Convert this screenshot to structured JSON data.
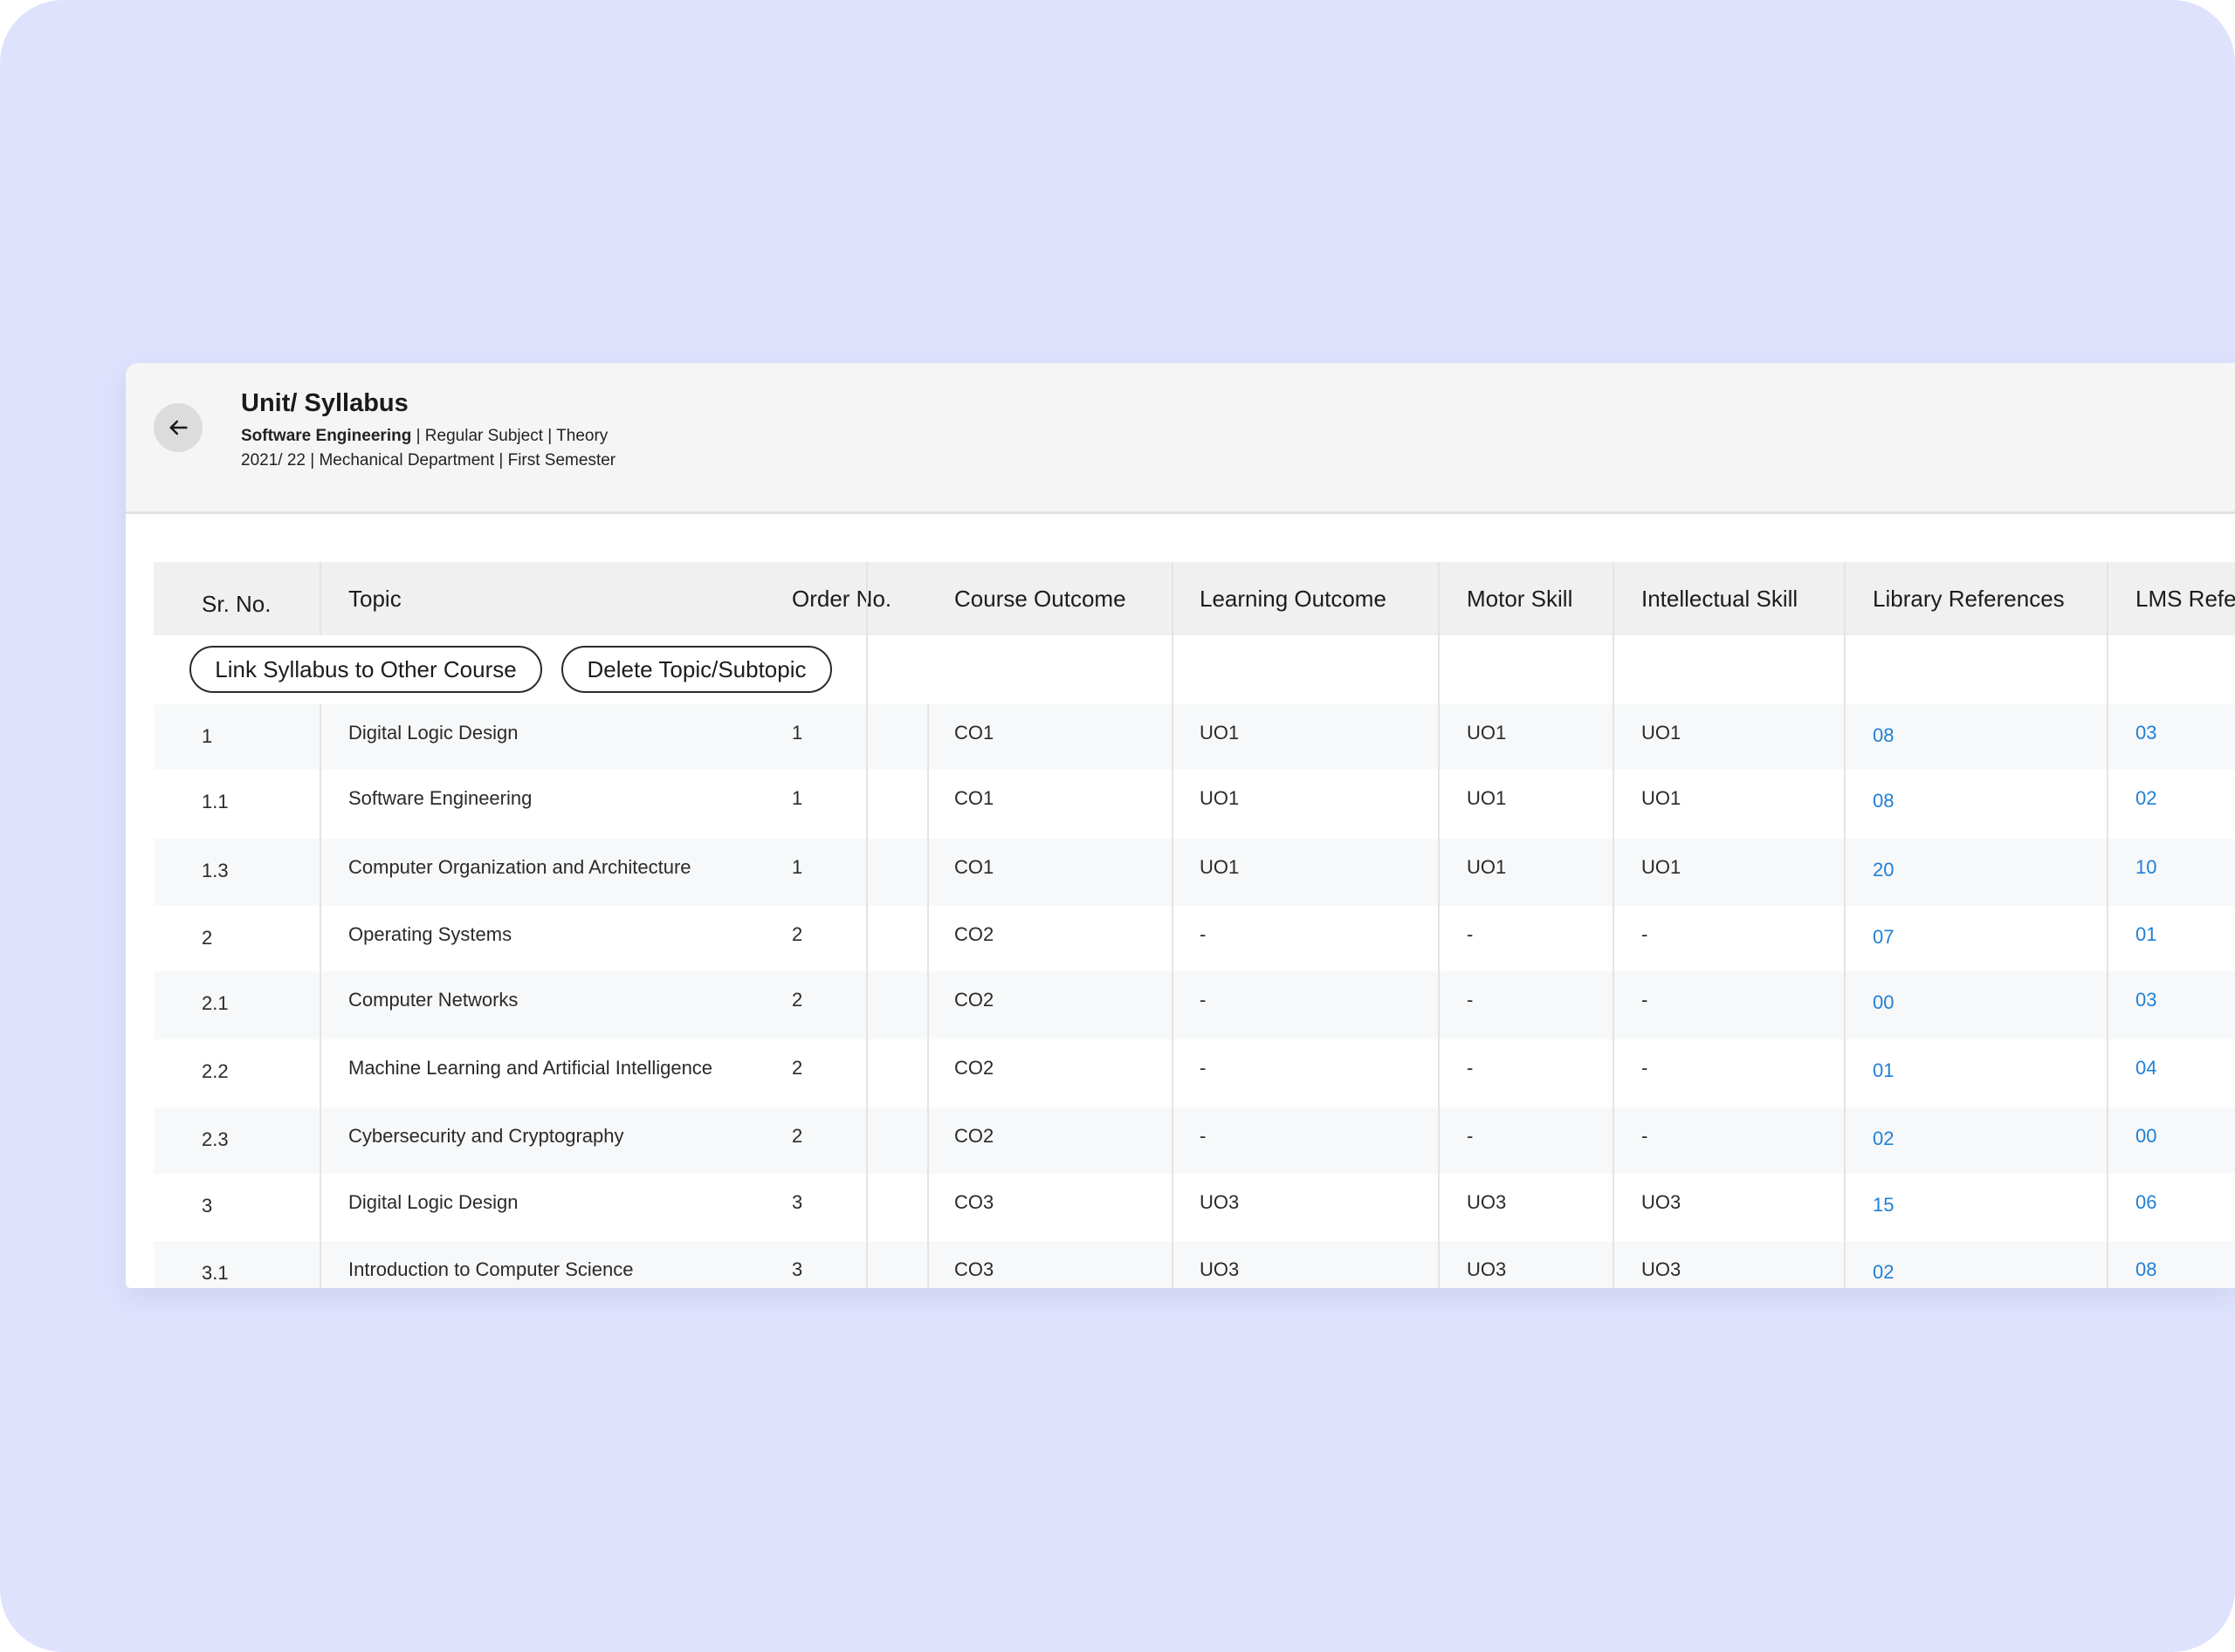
{
  "page": {
    "title": "Unit/ Syllabus",
    "subject_name": "Software Engineering",
    "subject_meta": " | Regular Subject | Theory",
    "details": "2021/ 22 | Mechanical Department | First Semester"
  },
  "icons": {
    "back": "arrow-left-icon"
  },
  "colors": {
    "background": "#dee2fd",
    "link": "#1f7fd6",
    "header_bg": "#f5f5f5"
  },
  "table": {
    "headers": {
      "sr_no": "Sr. No.",
      "topic": "Topic",
      "order_no": "Order No.",
      "course_outcome": "Course Outcome",
      "learning_outcome": "Learning Outcome",
      "motor_skill": "Motor Skill",
      "intellectual_skill": "Intellectual Skill",
      "library_references": "Library References",
      "lms_references": "LMS Refe"
    },
    "actions": {
      "link_syllabus": "Link Syllabus to Other Course",
      "delete_topic": "Delete Topic/Subtopic"
    },
    "rows": [
      {
        "sr": "1",
        "topic": "Digital Logic Design",
        "order": "1",
        "co": "CO1",
        "lo": "UO1",
        "motor": "UO1",
        "intel": "UO1",
        "lib": "08",
        "lms": "03"
      },
      {
        "sr": "1.1",
        "topic": "Software Engineering",
        "order": "1",
        "co": "CO1",
        "lo": "UO1",
        "motor": "UO1",
        "intel": "UO1",
        "lib": "08",
        "lms": "02"
      },
      {
        "sr": "1.3",
        "topic": "Computer Organization and Architecture",
        "order": "1",
        "co": "CO1",
        "lo": "UO1",
        "motor": "UO1",
        "intel": "UO1",
        "lib": "20",
        "lms": "10"
      },
      {
        "sr": "2",
        "topic": "Operating Systems",
        "order": "2",
        "co": "CO2",
        "lo": "-",
        "motor": "-",
        "intel": "-",
        "lib": "07",
        "lms": "01"
      },
      {
        "sr": "2.1",
        "topic": "Computer Networks",
        "order": "2",
        "co": "CO2",
        "lo": "-",
        "motor": "-",
        "intel": "-",
        "lib": "00",
        "lms": "03"
      },
      {
        "sr": "2.2",
        "topic": "Machine Learning and Artificial Intelligence",
        "order": "2",
        "co": "CO2",
        "lo": "-",
        "motor": "-",
        "intel": "-",
        "lib": "01",
        "lms": "04"
      },
      {
        "sr": "2.3",
        "topic": "Cybersecurity and Cryptography",
        "order": "2",
        "co": "CO2",
        "lo": "-",
        "motor": "-",
        "intel": "-",
        "lib": "02",
        "lms": "00"
      },
      {
        "sr": "3",
        "topic": "Digital Logic Design",
        "order": "3",
        "co": "CO3",
        "lo": "UO3",
        "motor": "UO3",
        "intel": "UO3",
        "lib": "15",
        "lms": "06"
      },
      {
        "sr": "3.1",
        "topic": "Introduction to Computer Science",
        "order": "3",
        "co": "CO3",
        "lo": "UO3",
        "motor": "UO3",
        "intel": "UO3",
        "lib": "02",
        "lms": "08"
      }
    ]
  }
}
